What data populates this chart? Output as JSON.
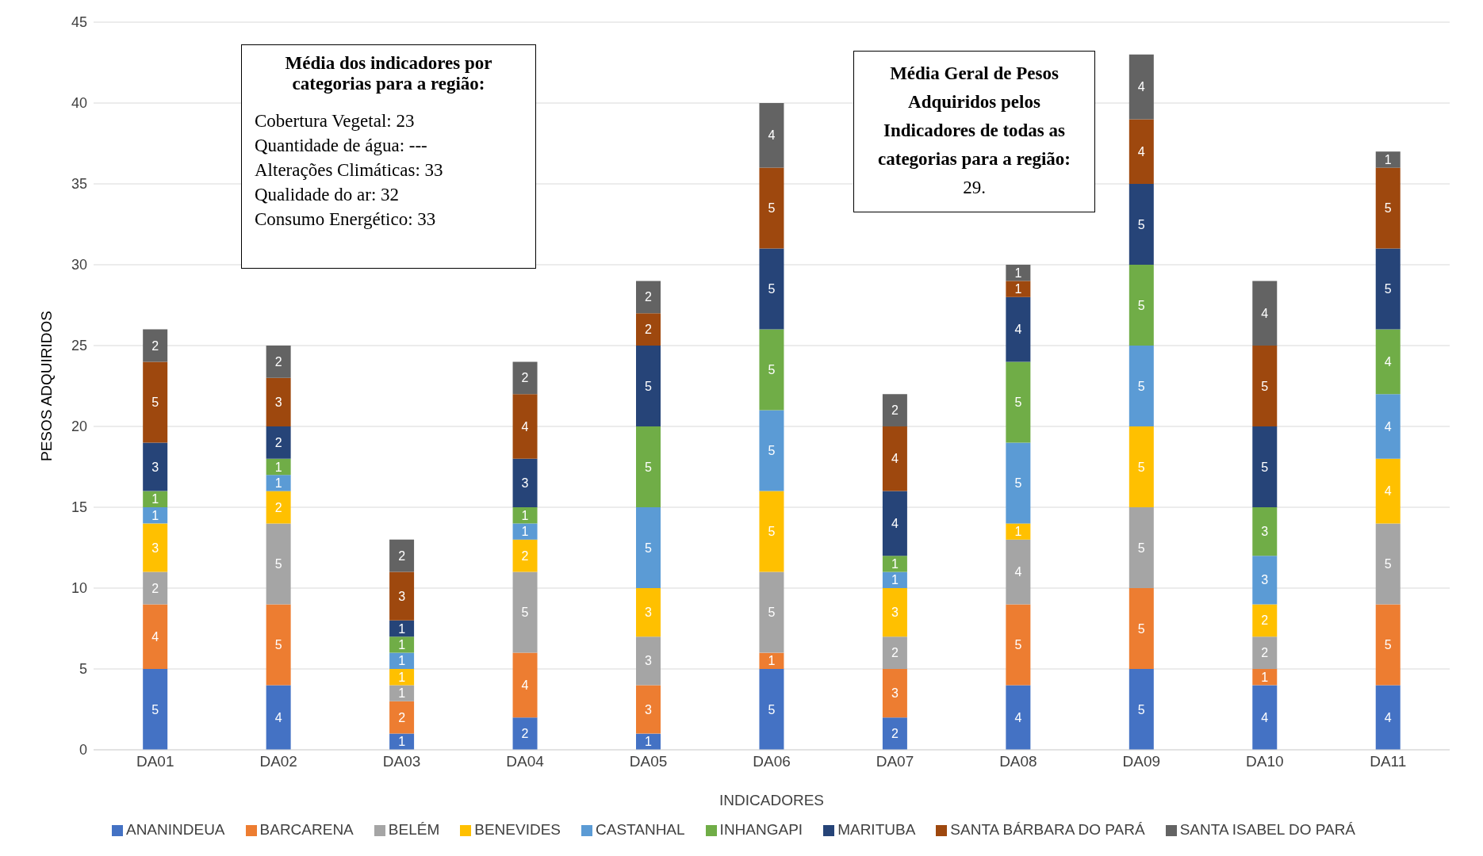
{
  "chart_data": {
    "type": "bar",
    "stacked": true,
    "xlabel": "INDICADORES",
    "ylabel": "PESOS  ADQUIRIDOS",
    "categories": [
      "DA01",
      "DA02",
      "DA03",
      "DA04",
      "DA05",
      "DA06",
      "DA07",
      "DA08",
      "DA09",
      "DA10",
      "DA11"
    ],
    "series": [
      {
        "name": "ANANINDEUA",
        "color": "#4472c4",
        "values": [
          5,
          4,
          1,
          2,
          1,
          5,
          2,
          4,
          5,
          4,
          4
        ]
      },
      {
        "name": "BARCARENA",
        "color": "#ed7d31",
        "values": [
          4,
          5,
          2,
          4,
          3,
          1,
          3,
          5,
          5,
          1,
          5
        ]
      },
      {
        "name": "BELÉM",
        "color": "#a5a5a5",
        "values": [
          2,
          5,
          1,
          5,
          3,
          5,
          2,
          4,
          5,
          2,
          5
        ]
      },
      {
        "name": "BENEVIDES",
        "color": "#ffc000",
        "values": [
          3,
          2,
          1,
          2,
          3,
          5,
          3,
          1,
          5,
          2,
          4
        ]
      },
      {
        "name": "CASTANHAL",
        "color": "#5b9bd5",
        "values": [
          1,
          1,
          1,
          1,
          5,
          5,
          1,
          5,
          5,
          3,
          4
        ]
      },
      {
        "name": "INHANGAPI",
        "color": "#70ad47",
        "values": [
          1,
          1,
          1,
          1,
          5,
          5,
          1,
          5,
          5,
          3,
          4
        ]
      },
      {
        "name": "MARITUBA",
        "color": "#264478",
        "values": [
          3,
          2,
          1,
          3,
          5,
          5,
          4,
          4,
          5,
          5,
          5
        ]
      },
      {
        "name": "SANTA BÁRBARA DO PARÁ",
        "color": "#9e480e",
        "values": [
          5,
          3,
          3,
          4,
          2,
          5,
          4,
          1,
          4,
          5,
          5
        ]
      },
      {
        "name": "SANTA ISABEL DO PARÁ",
        "color": "#636363",
        "values": [
          2,
          2,
          2,
          2,
          2,
          4,
          2,
          1,
          4,
          4,
          1
        ]
      }
    ],
    "ylim": [
      0,
      45
    ],
    "yticks": [
      0,
      5,
      10,
      15,
      20,
      25,
      30,
      35,
      40,
      45
    ],
    "grid": "y",
    "legend": "bottom",
    "data_labels": true,
    "annotations": [
      "Média dos indicadores por categorias para a região:",
      "Cobertura Vegetal: 23",
      "Quantidade de água: ---",
      "Alterações Climáticas: 33",
      "Qualidade do ar: 32",
      "Consumo Energético: 33",
      "Média Geral de Pesos Adquiridos pelos Indicadores de todas as categorias para a região:",
      "29."
    ]
  }
}
